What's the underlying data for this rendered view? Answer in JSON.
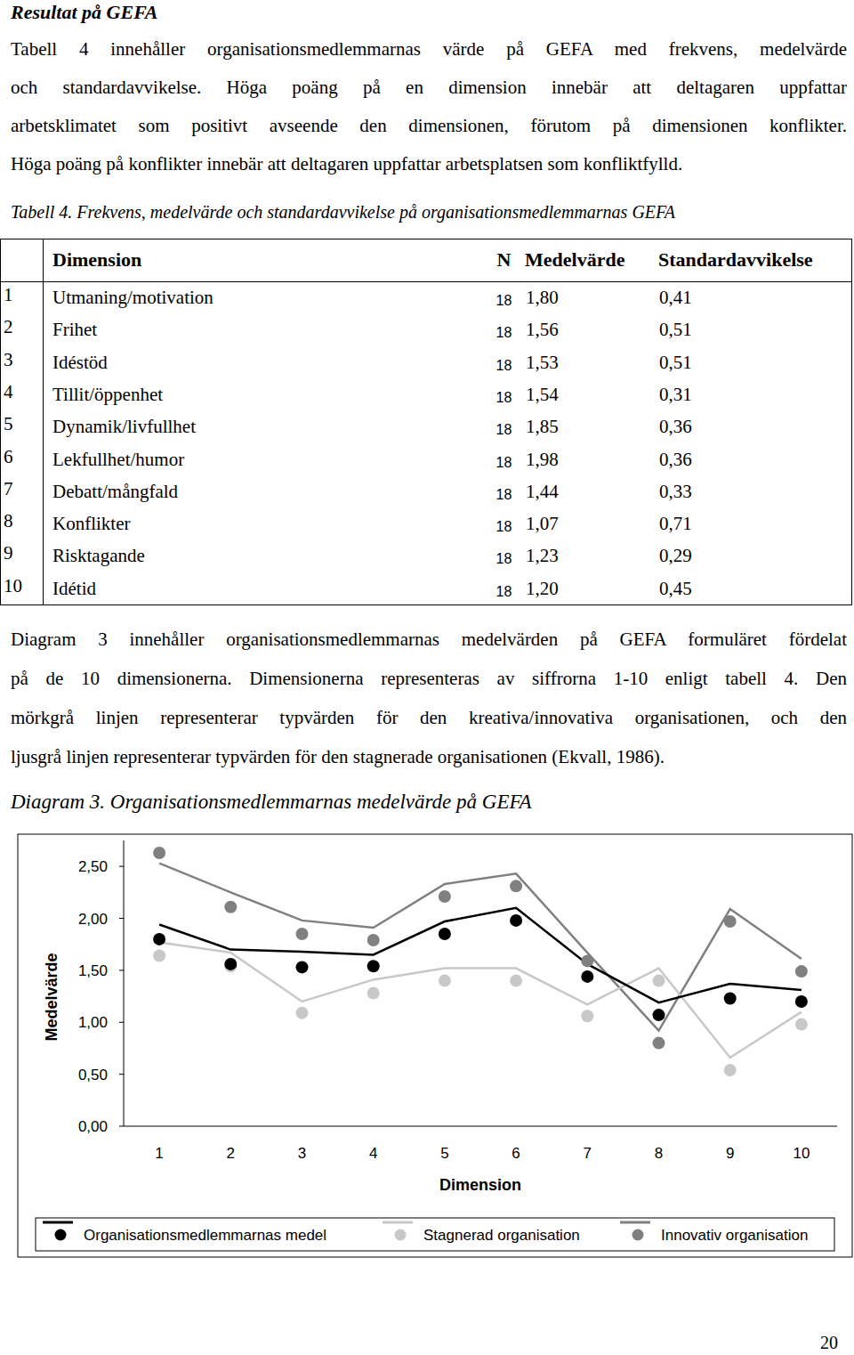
{
  "heading": "Resultat på GEFA",
  "paragraphs": [
    {
      "lines": [
        "Tabell 4 innehåller organisationsmedlemmarnas värde på GEFA med frekvens, medelvärde",
        "och standardavvikelse. Höga poäng på en dimension innebär att deltagaren uppfattar",
        "arbetsklimatet som positivt avseende den dimensionen, förutom på dimensionen konflikter.",
        "Höga poäng på konflikter innebär att deltagaren uppfattar arbetsplatsen som konfliktfylld."
      ]
    },
    {
      "lines": [
        "Diagram 3 innehåller organisationsmedlemmarnas medelvärden på GEFA formuläret fördelat",
        "på de 10 dimensionerna. Dimensionerna representeras av siffrorna 1-10 enligt tabell 4. Den",
        "mörkgrå linjen representerar typvärden för den kreativa/innovativa organisationen, och den",
        "ljusgrå linjen representerar typvärden för den stagnerade organisationen (Ekvall, 1986)."
      ]
    }
  ],
  "table": {
    "caption": "Tabell 4. Frekvens, medelvärde och standardavvikelse på organisationsmedlemmarnas GEFA",
    "header": [
      "Dimension",
      "N",
      "Medelvärde",
      "Standardavvikelse"
    ],
    "rows": [
      [
        "1",
        "Utmaning/motivation",
        "18",
        "1,80",
        "0,41"
      ],
      [
        "2",
        "Frihet",
        "18",
        "1,56",
        "0,51"
      ],
      [
        "3",
        "Idéstöd",
        "18",
        "1,53",
        "0,51"
      ],
      [
        "4",
        "Tillit/öppenhet",
        "18",
        "1,54",
        "0,31"
      ],
      [
        "5",
        "Dynamik/livfullhet",
        "18",
        "1,85",
        "0,36"
      ],
      [
        "6",
        "Lekfullhet/humor",
        "18",
        "1,98",
        "0,36"
      ],
      [
        "7",
        "Debatt/mångfald",
        "18",
        "1,44",
        "0,33"
      ],
      [
        "8",
        "Konflikter",
        "18",
        "1,07",
        "0,71"
      ],
      [
        "9",
        "Risktagande",
        "18",
        "1,23",
        "0,29"
      ],
      [
        "10",
        "Idétid",
        "18",
        "1,20",
        "0,45"
      ]
    ]
  },
  "chart_data": {
    "type": "line",
    "title": "Diagram 3. Organisationsmedlemmarnas medelvärde på GEFA",
    "x_label": "Dimension",
    "y_label": "Medelvärde",
    "categories": [
      "1",
      "2",
      "3",
      "4",
      "5",
      "6",
      "7",
      "8",
      "9",
      "10"
    ],
    "ylim": [
      0,
      2.75
    ],
    "yticks": [
      {
        "value": 0,
        "label": "0,00"
      },
      {
        "value": 0.5,
        "label": "0,50"
      },
      {
        "value": 1,
        "label": "1,00"
      },
      {
        "value": 1.5,
        "label": "1,50"
      },
      {
        "value": 2,
        "label": "2,00"
      },
      {
        "value": 2.5,
        "label": "2,50"
      }
    ],
    "grid": false,
    "legend": "bottom",
    "series": [
      {
        "name": "Organisationsmedlemmarnas medel",
        "color": "#000000",
        "marker": "circle",
        "line_style": "solid",
        "values": [
          1.8,
          1.56,
          1.53,
          1.54,
          1.85,
          1.98,
          1.44,
          1.07,
          1.23,
          1.2
        ],
        "line_values": [
          1.94,
          1.7,
          1.68,
          1.65,
          1.97,
          2.1,
          1.56,
          1.19,
          1.37,
          1.31
        ]
      },
      {
        "name": "Stagnerad organisation",
        "color": "#c8c8c8",
        "marker": "circle",
        "line_style": "solid",
        "values": [
          1.64,
          1.54,
          1.09,
          1.28,
          1.4,
          1.4,
          1.06,
          1.4,
          0.54,
          0.98
        ],
        "line_values": [
          1.77,
          1.67,
          1.2,
          1.41,
          1.52,
          1.52,
          1.17,
          1.52,
          0.66,
          1.1
        ]
      },
      {
        "name": "Innovativ organisation",
        "color": "#808080",
        "marker": "circle",
        "line_style": "solid",
        "values": [
          2.63,
          2.11,
          1.85,
          1.79,
          2.21,
          2.31,
          1.59,
          0.8,
          1.97,
          1.49
        ],
        "line_values": [
          2.53,
          2.25,
          1.98,
          1.91,
          2.33,
          2.43,
          1.67,
          0.92,
          2.09,
          1.61
        ]
      }
    ]
  },
  "page_number": "20"
}
